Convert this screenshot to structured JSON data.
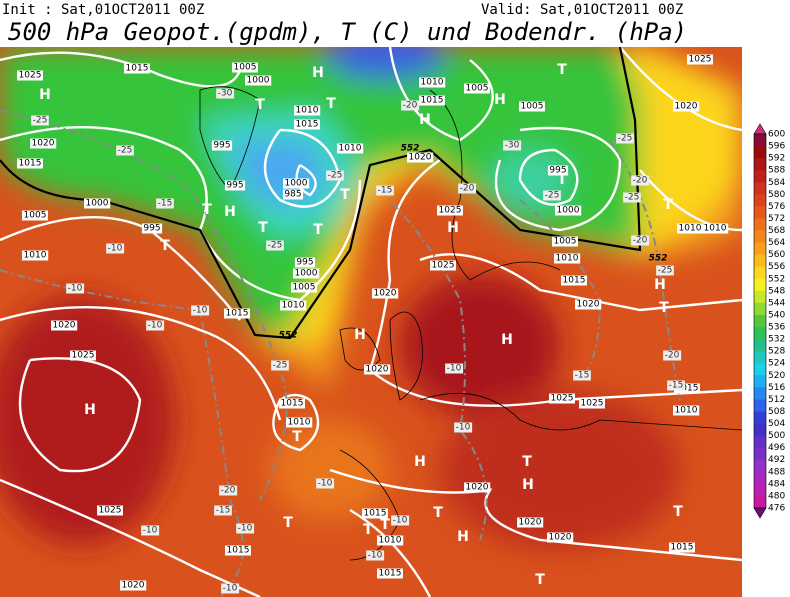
{
  "header": {
    "init": "Init : Sat,01OCT2011 00Z",
    "valid": "Valid: Sat,01OCT2011 00Z",
    "title": "500 hPa Geopot.(gpdm), T (C) und Bodendr. (hPa)"
  },
  "colorbar": {
    "labels": [
      600,
      596,
      592,
      588,
      584,
      580,
      576,
      572,
      568,
      564,
      560,
      556,
      552,
      548,
      544,
      540,
      536,
      532,
      528,
      524,
      520,
      516,
      512,
      508,
      504,
      500,
      496,
      492,
      488,
      484,
      480,
      476
    ]
  },
  "map": {
    "isobar_labels": [
      1025,
      1015,
      1005,
      1000,
      1010,
      1015,
      1005,
      1005,
      1010,
      1015,
      995,
      995,
      1000,
      985,
      1010,
      1020,
      995,
      1000,
      1005,
      1010,
      1015,
      1020,
      1025,
      1025,
      1020,
      1015,
      1010,
      1005,
      1000,
      995,
      1020,
      1025,
      1020,
      1025,
      1025,
      1015,
      1010,
      1020,
      1015,
      1020,
      1025,
      1015,
      1015,
      1015,
      1020,
      1005,
      1000,
      995,
      1010,
      1015,
      1020,
      1010,
      1010,
      1020,
      1025,
      1015,
      1010,
      1020,
      1010
    ],
    "temperature_labels": [
      -30,
      -25,
      -25,
      -15,
      -10,
      -10,
      -10,
      -10,
      -25,
      -20,
      -15,
      -10,
      -10,
      -10,
      -10,
      -10,
      -10,
      -15,
      -20,
      -25,
      -30,
      -20,
      -25,
      -20,
      -25,
      -25,
      -20,
      -15,
      -15,
      -10,
      -10,
      -20,
      -25,
      -25
    ],
    "contour_552_labels": [
      552,
      552,
      552
    ],
    "pressure_centers": [
      "H",
      "H",
      "H",
      "H",
      "H",
      "H",
      "H",
      "H",
      "H",
      "H",
      "H",
      "H",
      "H",
      "T",
      "T",
      "T",
      "T",
      "T",
      "T",
      "T",
      "T",
      "T",
      "T",
      "T",
      "T",
      "T",
      "T",
      "T",
      "T",
      "T",
      "T",
      "T"
    ]
  }
}
